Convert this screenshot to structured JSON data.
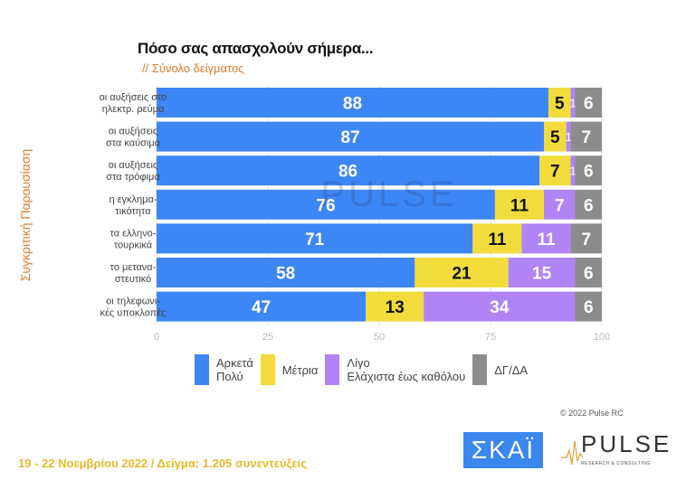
{
  "chart_data": {
    "type": "bar",
    "orientation": "horizontal",
    "stacked": true,
    "title": "Πόσο σας απασχολούν σήμερα...",
    "subtitle": "// Σύνολο δείγματος",
    "ylabel": "Συγκριτική Παρουσίαση",
    "xlabel": "",
    "xlim": [
      0,
      100
    ],
    "xticks": [
      "0",
      "25",
      "50",
      "75",
      "100"
    ],
    "watermark": "PULSE",
    "categories": [
      "οι αυξήσεις στο\nηλεκτρ. ρεύμα",
      "οι αυξήσεις\nστα καύσιμα",
      "οι αυξήσεις\nστα τρόφιμα",
      "η εγκλημα-\nτικότητα",
      "τα ελληνο-\nτουρκικά",
      "το μετανα-\nστευτικό",
      "οι τηλεφωνι-\nκές υποκλοπές"
    ],
    "series": [
      {
        "name": "Αρκετά\nΠολύ",
        "color": "#3d86f5",
        "label_color": "#ffffff",
        "values": [
          88,
          87,
          86,
          76,
          71,
          58,
          47
        ]
      },
      {
        "name": "Μέτρια",
        "color": "#f1dc3c",
        "label_color": "#111111",
        "values": [
          5,
          5,
          7,
          11,
          11,
          21,
          13
        ]
      },
      {
        "name": "Λίγο\nΕλάχιστα έως καθόλου",
        "color": "#b184f5",
        "label_color": "#ffffff",
        "values": [
          1,
          1,
          1,
          7,
          11,
          15,
          34
        ]
      },
      {
        "name": "ΔΓ/ΔΑ",
        "color": "#8c8c8c",
        "label_color": "#ffffff",
        "values": [
          6,
          7,
          6,
          6,
          7,
          6,
          6
        ]
      }
    ],
    "legend_position": "bottom"
  },
  "legend": [
    {
      "label": "Αρκετά\nΠολύ",
      "color": "#3d86f5"
    },
    {
      "label": "Μέτρια",
      "color": "#f1dc3c"
    },
    {
      "label": "Λίγο\nΕλάχιστα έως καθόλου",
      "color": "#b184f5"
    },
    {
      "label": "ΔΓ/ΔΑ",
      "color": "#8c8c8c"
    }
  ],
  "copyright": "© 2022 Pulse RC",
  "footer": "19 - 22  Νοεμβρίου  2022  /  Δείγμα:  1.205 συνεντεύξεις",
  "logos": {
    "skai": "ΣΚΑΪ",
    "pulse": "PULSE",
    "pulse_sub": "RESEARCH & CONSULTING"
  }
}
